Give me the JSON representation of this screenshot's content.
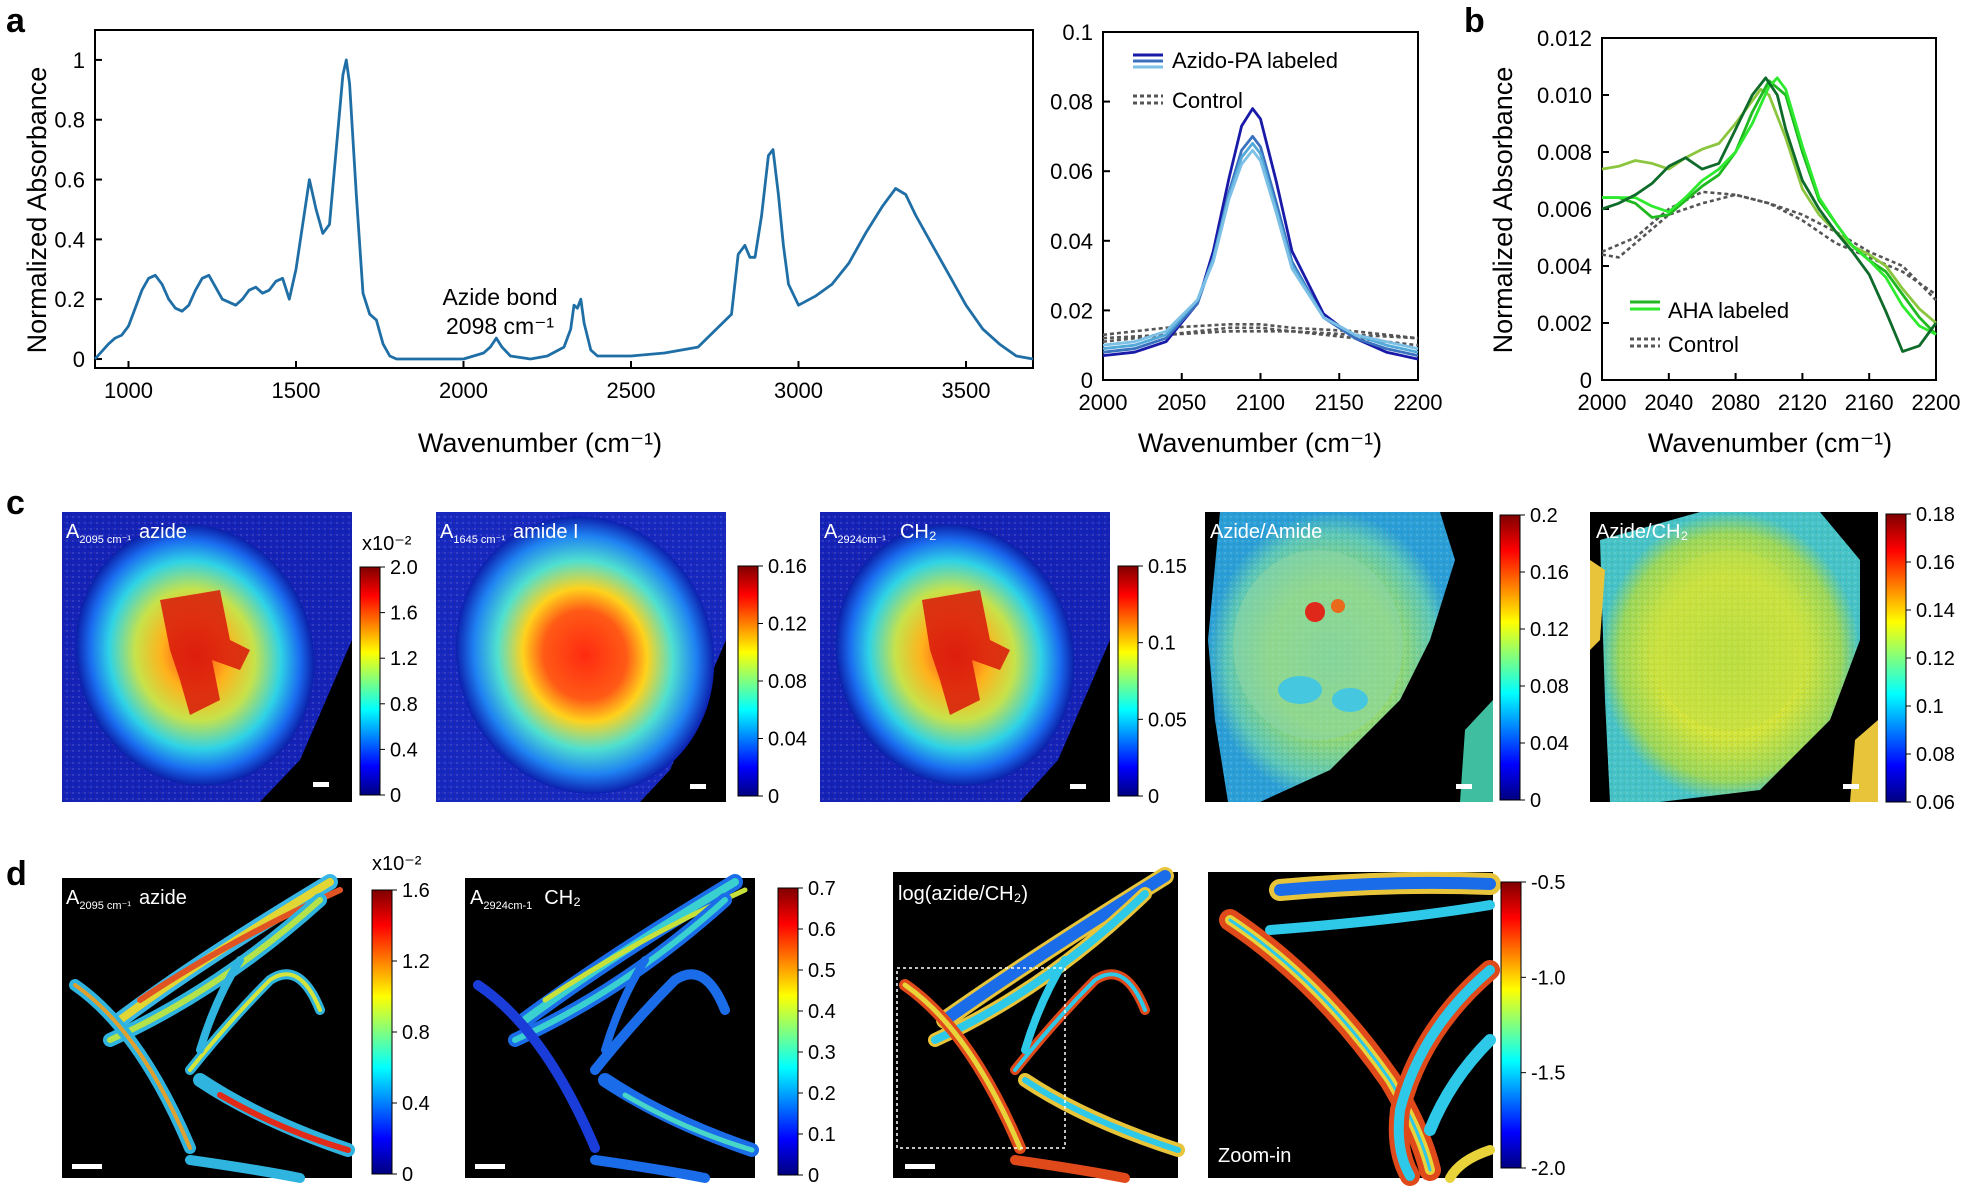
{
  "panels": {
    "a": "a",
    "b": "b",
    "c": "c",
    "d": "d"
  },
  "colors": {
    "ir_main": "#1f6fa6",
    "azido": [
      "#1a1aa8",
      "#3a72c0",
      "#53a9d8",
      "#7cc0e6"
    ],
    "control": "#555555",
    "aha": [
      "#8cc63f",
      "#20b820",
      "#2eea2e",
      "#0e6b2a"
    ]
  },
  "chart_data": [
    {
      "id": "a-full",
      "type": "line",
      "title": "",
      "xlabel": "Wavenumber (cm⁻¹)",
      "ylabel": "Normalized Absorbance",
      "xlim": [
        900,
        3700
      ],
      "ylim": [
        -0.03,
        1.1
      ],
      "xticks": [
        1000,
        1500,
        2000,
        2500,
        3000,
        3500
      ],
      "yticks": [
        0,
        0.2,
        0.4,
        0.6,
        0.8,
        1
      ],
      "yticklabels": [
        "0",
        "0.2",
        "0.4",
        "0.6",
        "0.8",
        "1"
      ],
      "annotation": [
        "Azide bond",
        "2098 cm⁻¹"
      ],
      "series": [
        {
          "name": "IR spectrum",
          "x": [
            900,
            940,
            960,
            980,
            1000,
            1020,
            1040,
            1060,
            1080,
            1100,
            1120,
            1140,
            1160,
            1180,
            1200,
            1220,
            1240,
            1260,
            1280,
            1300,
            1320,
            1340,
            1360,
            1380,
            1400,
            1420,
            1440,
            1460,
            1480,
            1500,
            1520,
            1540,
            1560,
            1580,
            1600,
            1620,
            1640,
            1650,
            1660,
            1680,
            1700,
            1720,
            1740,
            1760,
            1780,
            1800,
            1900,
            2000,
            2060,
            2080,
            2098,
            2115,
            2140,
            2200,
            2250,
            2300,
            2320,
            2330,
            2340,
            2350,
            2360,
            2380,
            2400,
            2500,
            2600,
            2700,
            2800,
            2820,
            2840,
            2855,
            2870,
            2890,
            2910,
            2924,
            2940,
            2955,
            2970,
            3000,
            3050,
            3100,
            3150,
            3200,
            3250,
            3290,
            3320,
            3350,
            3400,
            3450,
            3500,
            3550,
            3600,
            3650,
            3700
          ],
          "y": [
            0.0,
            0.05,
            0.07,
            0.08,
            0.11,
            0.17,
            0.23,
            0.27,
            0.28,
            0.25,
            0.2,
            0.17,
            0.16,
            0.18,
            0.23,
            0.27,
            0.28,
            0.24,
            0.2,
            0.19,
            0.18,
            0.2,
            0.23,
            0.24,
            0.22,
            0.23,
            0.26,
            0.27,
            0.2,
            0.3,
            0.45,
            0.6,
            0.5,
            0.42,
            0.45,
            0.7,
            0.95,
            1.0,
            0.92,
            0.55,
            0.22,
            0.15,
            0.13,
            0.05,
            0.01,
            0.0,
            0.0,
            0.0,
            0.02,
            0.04,
            0.07,
            0.04,
            0.01,
            0.0,
            0.01,
            0.04,
            0.1,
            0.18,
            0.17,
            0.2,
            0.12,
            0.03,
            0.01,
            0.01,
            0.02,
            0.04,
            0.15,
            0.35,
            0.38,
            0.34,
            0.34,
            0.48,
            0.68,
            0.7,
            0.55,
            0.38,
            0.25,
            0.18,
            0.21,
            0.25,
            0.32,
            0.42,
            0.51,
            0.57,
            0.55,
            0.48,
            0.38,
            0.28,
            0.18,
            0.1,
            0.05,
            0.01,
            0.0
          ]
        }
      ]
    },
    {
      "id": "a-zoom",
      "type": "line",
      "xlabel": "Wavenumber (cm⁻¹)",
      "ylabel": "",
      "xlim": [
        2000,
        2200
      ],
      "ylim": [
        0,
        0.1
      ],
      "xticks": [
        2000,
        2050,
        2100,
        2150,
        2200
      ],
      "yticks": [
        0,
        0.02,
        0.04,
        0.06,
        0.08,
        0.1
      ],
      "yticklabels": [
        "0",
        "0.02",
        "0.04",
        "0.06",
        "0.08",
        "0.1"
      ],
      "legend": [
        "Azido-PA labeled",
        "Control"
      ],
      "legend_position": "top-left",
      "series": [
        {
          "name": "Azido-PA labeled 1",
          "group": "azido",
          "x": [
            2000,
            2020,
            2040,
            2060,
            2070,
            2080,
            2088,
            2095,
            2100,
            2110,
            2120,
            2140,
            2160,
            2180,
            2200
          ],
          "y": [
            0.007,
            0.008,
            0.011,
            0.022,
            0.037,
            0.058,
            0.073,
            0.078,
            0.075,
            0.057,
            0.037,
            0.019,
            0.012,
            0.008,
            0.006
          ]
        },
        {
          "name": "Azido-PA labeled 2",
          "group": "azido",
          "x": [
            2000,
            2020,
            2040,
            2060,
            2070,
            2080,
            2088,
            2095,
            2100,
            2110,
            2120,
            2140,
            2160,
            2180,
            2200
          ],
          "y": [
            0.008,
            0.009,
            0.012,
            0.022,
            0.035,
            0.054,
            0.066,
            0.07,
            0.067,
            0.051,
            0.034,
            0.018,
            0.012,
            0.009,
            0.007
          ]
        },
        {
          "name": "Azido-PA labeled 3",
          "group": "azido",
          "x": [
            2000,
            2020,
            2040,
            2060,
            2070,
            2080,
            2088,
            2095,
            2100,
            2110,
            2120,
            2140,
            2160,
            2180,
            2200
          ],
          "y": [
            0.009,
            0.01,
            0.013,
            0.023,
            0.035,
            0.053,
            0.064,
            0.068,
            0.065,
            0.049,
            0.033,
            0.018,
            0.013,
            0.01,
            0.008
          ]
        },
        {
          "name": "Azido-PA labeled 4",
          "group": "azido",
          "x": [
            2000,
            2020,
            2040,
            2060,
            2070,
            2080,
            2088,
            2095,
            2100,
            2110,
            2120,
            2140,
            2160,
            2180,
            2200
          ],
          "y": [
            0.01,
            0.011,
            0.014,
            0.023,
            0.034,
            0.052,
            0.062,
            0.066,
            0.063,
            0.048,
            0.032,
            0.018,
            0.013,
            0.011,
            0.009
          ]
        },
        {
          "name": "Control 1",
          "group": "control",
          "x": [
            2000,
            2040,
            2080,
            2100,
            2120,
            2160,
            2200
          ],
          "y": [
            0.013,
            0.015,
            0.016,
            0.016,
            0.015,
            0.014,
            0.012
          ]
        },
        {
          "name": "Control 2",
          "group": "control",
          "x": [
            2000,
            2040,
            2080,
            2100,
            2120,
            2160,
            2200
          ],
          "y": [
            0.011,
            0.013,
            0.015,
            0.015,
            0.014,
            0.012,
            0.01
          ]
        },
        {
          "name": "Control 3",
          "group": "control",
          "x": [
            2000,
            2040,
            2080,
            2100,
            2120,
            2160,
            2200
          ],
          "y": [
            0.012,
            0.013,
            0.014,
            0.014,
            0.014,
            0.013,
            0.012
          ]
        }
      ]
    },
    {
      "id": "b",
      "type": "line",
      "xlabel": "Wavenumber (cm⁻¹)",
      "ylabel": "Normalized Absorbance",
      "xlim": [
        2000,
        2200
      ],
      "ylim": [
        0,
        0.012
      ],
      "xticks": [
        2000,
        2040,
        2080,
        2120,
        2160,
        2200
      ],
      "yticks": [
        0,
        0.002,
        0.004,
        0.006,
        0.008,
        0.01,
        0.012
      ],
      "yticklabels": [
        "0",
        "0.002",
        "0.004",
        "0.006",
        "0.008",
        "0.010",
        "0.012"
      ],
      "legend": [
        "AHA labeled",
        "Control"
      ],
      "legend_position": "bottom-left",
      "series": [
        {
          "name": "AHA labeled 1",
          "group": "aha",
          "x": [
            2000,
            2010,
            2020,
            2030,
            2040,
            2050,
            2060,
            2070,
            2080,
            2090,
            2095,
            2100,
            2110,
            2120,
            2130,
            2140,
            2150,
            2160,
            2170,
            2180,
            2190,
            2200
          ],
          "y": [
            0.0074,
            0.0075,
            0.0077,
            0.0076,
            0.0074,
            0.0078,
            0.0081,
            0.0083,
            0.009,
            0.0098,
            0.0102,
            0.01,
            0.0085,
            0.0067,
            0.0058,
            0.0052,
            0.0047,
            0.0044,
            0.004,
            0.0032,
            0.0025,
            0.002
          ]
        },
        {
          "name": "AHA labeled 2",
          "group": "aha",
          "x": [
            2000,
            2010,
            2020,
            2030,
            2040,
            2050,
            2060,
            2070,
            2080,
            2090,
            2100,
            2110,
            2120,
            2130,
            2140,
            2150,
            2160,
            2170,
            2180,
            2190,
            2200
          ],
          "y": [
            0.0064,
            0.0064,
            0.0062,
            0.0057,
            0.0058,
            0.0063,
            0.0068,
            0.0072,
            0.008,
            0.0094,
            0.0105,
            0.01,
            0.008,
            0.0063,
            0.0055,
            0.0047,
            0.0042,
            0.0038,
            0.003,
            0.0022,
            0.0016
          ]
        },
        {
          "name": "AHA labeled 3",
          "group": "aha",
          "x": [
            2000,
            2010,
            2020,
            2030,
            2040,
            2050,
            2060,
            2070,
            2080,
            2090,
            2100,
            2105,
            2110,
            2120,
            2130,
            2140,
            2150,
            2160,
            2170,
            2180,
            2190,
            2200
          ],
          "y": [
            0.0064,
            0.0064,
            0.0064,
            0.0061,
            0.0059,
            0.0064,
            0.007,
            0.0074,
            0.008,
            0.009,
            0.0103,
            0.0106,
            0.0102,
            0.0082,
            0.0064,
            0.0055,
            0.0047,
            0.0042,
            0.0036,
            0.0026,
            0.0019,
            0.0016
          ]
        },
        {
          "name": "AHA labeled 4",
          "group": "aha",
          "x": [
            2000,
            2010,
            2020,
            2030,
            2040,
            2050,
            2060,
            2070,
            2080,
            2090,
            2098,
            2105,
            2110,
            2120,
            2130,
            2140,
            2150,
            2160,
            2170,
            2180,
            2190,
            2200
          ],
          "y": [
            0.006,
            0.0062,
            0.0065,
            0.0069,
            0.0075,
            0.0078,
            0.0074,
            0.0076,
            0.0088,
            0.01,
            0.0106,
            0.01,
            0.0088,
            0.007,
            0.006,
            0.0052,
            0.0045,
            0.0037,
            0.0024,
            0.001,
            0.0012,
            0.002
          ]
        },
        {
          "name": "Control 1",
          "group": "control",
          "x": [
            2000,
            2020,
            2040,
            2060,
            2080,
            2100,
            2120,
            2140,
            2160,
            2180,
            2200
          ],
          "y": [
            0.0045,
            0.005,
            0.006,
            0.0066,
            0.0065,
            0.0062,
            0.0058,
            0.0052,
            0.0045,
            0.004,
            0.0028
          ]
        },
        {
          "name": "Control 2",
          "group": "control",
          "x": [
            2000,
            2010,
            2020,
            2040,
            2060,
            2080,
            2100,
            2120,
            2140,
            2160,
            2180,
            2200
          ],
          "y": [
            0.0044,
            0.0043,
            0.0048,
            0.0058,
            0.0062,
            0.0065,
            0.0062,
            0.0056,
            0.0048,
            0.0043,
            0.0038,
            0.003
          ]
        }
      ]
    }
  ],
  "panel_c": [
    {
      "label_main": "A",
      "label_sub": "2095 cm⁻¹",
      "label_text": "azide",
      "colormap": "jet",
      "cb_exponent": "x10⁻²",
      "cb_ticks": [
        "2.0",
        "1.6",
        "1.2",
        "0.8",
        "0.4",
        "0"
      ]
    },
    {
      "label_main": "A",
      "label_sub": "1645 cm⁻¹",
      "label_text": "amide I",
      "colormap": "jet",
      "cb_exponent": "",
      "cb_ticks": [
        "0.16",
        "0.12",
        "0.08",
        "0.04",
        "0"
      ]
    },
    {
      "label_main": "A",
      "label_sub": "2924cm⁻¹",
      "label_text": "CH₂",
      "colormap": "jet",
      "cb_exponent": "",
      "cb_ticks": [
        "0.15",
        "0.1",
        "0.05",
        "0"
      ]
    },
    {
      "label_main": "Azide/Amide",
      "label_sub": "",
      "label_text": "",
      "colormap": "jet",
      "cb_exponent": "",
      "cb_ticks": [
        "0.2",
        "0.16",
        "0.12",
        "0.08",
        "0.04",
        "0"
      ]
    },
    {
      "label_main": "Azide/CH₂",
      "label_sub": "",
      "label_text": "",
      "colormap": "jet",
      "cb_exponent": "",
      "cb_ticks": [
        "0.18",
        "0.16",
        "0.14",
        "0.12",
        "0.1",
        "0.08",
        "0.06"
      ]
    }
  ],
  "panel_d": [
    {
      "label_main": "A",
      "label_sub": "2095 cm⁻¹",
      "label_text": "azide",
      "cb_exponent": "x10⁻²",
      "cb_ticks": [
        "1.6",
        "1.2",
        "0.8",
        "0.4",
        "0"
      ]
    },
    {
      "label_main": "A",
      "label_sub": "2924cm-1",
      "label_text": "CH₂",
      "cb_exponent": "",
      "cb_ticks": [
        "0.7",
        "0.6",
        "0.5",
        "0.4",
        "0.3",
        "0.2",
        "0.1",
        "0"
      ]
    },
    {
      "label_main": "log(azide/CH₂)",
      "label_sub": "",
      "label_text": "",
      "cb_exponent": "",
      "cb_ticks": [
        "-0.5",
        "-1.0",
        "-1.5",
        "-2.0"
      ]
    },
    {
      "label_main": "Zoom-in",
      "label_sub": "",
      "label_text": "",
      "cb_exponent": "",
      "cb_ticks": []
    }
  ]
}
